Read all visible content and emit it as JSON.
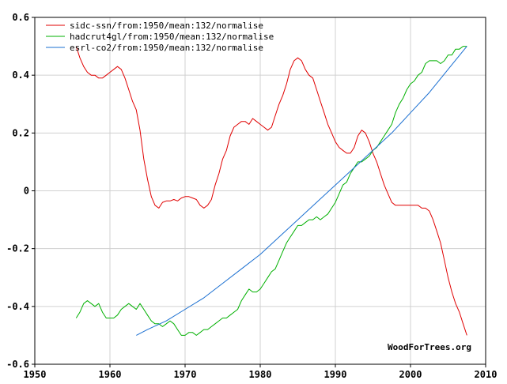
{
  "chart_data": {
    "type": "line",
    "xlim": [
      1950,
      2010
    ],
    "ylim": [
      -0.6,
      0.6
    ],
    "x_ticks": [
      1950,
      1960,
      1970,
      1980,
      1990,
      2000,
      2010
    ],
    "y_ticks": [
      0.6,
      0.4,
      0.2,
      0,
      -0.2,
      -0.4,
      -0.6
    ],
    "x_tick_labels": [
      "1950",
      "1960",
      "1970",
      "1980",
      "1990",
      "2000",
      "2010"
    ],
    "y_tick_labels": [
      "0.6",
      "0.4",
      "0.2",
      "0",
      "-0.2",
      "-0.4",
      "-0.6"
    ],
    "grid": true,
    "legend_position": "top-left",
    "credit": "WoodForTrees.org",
    "series": [
      {
        "name": "sidc-ssn/from:1950/mean:132/normalise",
        "color": "#e00000",
        "x": [
          1955.5,
          1956.0,
          1956.5,
          1957.0,
          1957.5,
          1958.0,
          1958.5,
          1959.0,
          1959.5,
          1960.0,
          1960.5,
          1961.0,
          1961.5,
          1962.0,
          1962.5,
          1963.0,
          1963.5,
          1964.0,
          1964.5,
          1965.0,
          1965.5,
          1966.0,
          1966.5,
          1967.0,
          1967.5,
          1968.0,
          1968.5,
          1969.0,
          1969.5,
          1970.0,
          1970.5,
          1971.0,
          1971.5,
          1972.0,
          1972.5,
          1973.0,
          1973.5,
          1974.0,
          1974.5,
          1975.0,
          1975.5,
          1976.0,
          1976.5,
          1977.0,
          1977.5,
          1978.0,
          1978.5,
          1979.0,
          1979.5,
          1980.0,
          1980.5,
          1981.0,
          1981.5,
          1982.0,
          1982.5,
          1983.0,
          1983.5,
          1984.0,
          1984.5,
          1985.0,
          1985.5,
          1986.0,
          1986.5,
          1987.0,
          1987.5,
          1988.0,
          1988.5,
          1989.0,
          1989.5,
          1990.0,
          1990.5,
          1991.0,
          1991.5,
          1992.0,
          1992.5,
          1993.0,
          1993.5,
          1994.0,
          1994.5,
          1995.0,
          1995.5,
          1996.0,
          1996.5,
          1997.0,
          1997.5,
          1998.0,
          1998.5,
          1999.0,
          1999.5,
          2000.0,
          2000.5,
          2001.0,
          2001.5,
          2002.0,
          2002.5,
          2003.0,
          2003.5,
          2004.0,
          2004.5,
          2005.0,
          2005.5,
          2006.0,
          2006.5,
          2007.0,
          2007.5
        ],
        "values": [
          0.5,
          0.46,
          0.43,
          0.41,
          0.4,
          0.4,
          0.39,
          0.39,
          0.4,
          0.41,
          0.42,
          0.43,
          0.42,
          0.39,
          0.35,
          0.31,
          0.28,
          0.21,
          0.11,
          0.04,
          -0.02,
          -0.05,
          -0.06,
          -0.04,
          -0.035,
          -0.035,
          -0.03,
          -0.035,
          -0.025,
          -0.02,
          -0.02,
          -0.025,
          -0.03,
          -0.05,
          -0.06,
          -0.05,
          -0.03,
          0.02,
          0.06,
          0.11,
          0.14,
          0.19,
          0.22,
          0.23,
          0.24,
          0.24,
          0.23,
          0.25,
          0.24,
          0.23,
          0.22,
          0.21,
          0.22,
          0.26,
          0.3,
          0.33,
          0.37,
          0.42,
          0.45,
          0.46,
          0.45,
          0.42,
          0.4,
          0.39,
          0.35,
          0.31,
          0.27,
          0.23,
          0.2,
          0.17,
          0.15,
          0.14,
          0.13,
          0.13,
          0.15,
          0.19,
          0.21,
          0.2,
          0.17,
          0.13,
          0.1,
          0.06,
          0.02,
          -0.01,
          -0.04,
          -0.05,
          -0.05,
          -0.05,
          -0.05,
          -0.05,
          -0.05,
          -0.05,
          -0.06,
          -0.06,
          -0.07,
          -0.1,
          -0.14,
          -0.18,
          -0.24,
          -0.3,
          -0.35,
          -0.39,
          -0.42,
          -0.46,
          -0.5
        ]
      },
      {
        "name": "hadcrut4gl/from:1950/mean:132/normalise",
        "color": "#00b000",
        "x": [
          1955.5,
          1956.0,
          1956.5,
          1957.0,
          1957.5,
          1958.0,
          1958.5,
          1959.0,
          1959.5,
          1960.0,
          1960.5,
          1961.0,
          1961.5,
          1962.0,
          1962.5,
          1963.0,
          1963.5,
          1964.0,
          1964.5,
          1965.0,
          1965.5,
          1966.0,
          1966.5,
          1967.0,
          1967.5,
          1968.0,
          1968.5,
          1969.0,
          1969.5,
          1970.0,
          1970.5,
          1971.0,
          1971.5,
          1972.0,
          1972.5,
          1973.0,
          1973.5,
          1974.0,
          1974.5,
          1975.0,
          1975.5,
          1976.0,
          1976.5,
          1977.0,
          1977.5,
          1978.0,
          1978.5,
          1979.0,
          1979.5,
          1980.0,
          1980.5,
          1981.0,
          1981.5,
          1982.0,
          1982.5,
          1983.0,
          1983.5,
          1984.0,
          1984.5,
          1985.0,
          1985.5,
          1986.0,
          1986.5,
          1987.0,
          1987.5,
          1988.0,
          1988.5,
          1989.0,
          1989.5,
          1990.0,
          1990.5,
          1991.0,
          1991.5,
          1992.0,
          1992.5,
          1993.0,
          1993.5,
          1994.0,
          1994.5,
          1995.0,
          1995.5,
          1996.0,
          1996.5,
          1997.0,
          1997.5,
          1998.0,
          1998.5,
          1999.0,
          1999.5,
          2000.0,
          2000.5,
          2001.0,
          2001.5,
          2002.0,
          2002.5,
          2003.0,
          2003.5,
          2004.0,
          2004.5,
          2005.0,
          2005.5,
          2006.0,
          2006.5,
          2007.0,
          2007.5
        ],
        "values": [
          -0.44,
          -0.42,
          -0.39,
          -0.38,
          -0.39,
          -0.4,
          -0.39,
          -0.42,
          -0.44,
          -0.44,
          -0.44,
          -0.43,
          -0.41,
          -0.4,
          -0.39,
          -0.4,
          -0.41,
          -0.39,
          -0.41,
          -0.43,
          -0.45,
          -0.46,
          -0.46,
          -0.47,
          -0.46,
          -0.45,
          -0.46,
          -0.48,
          -0.5,
          -0.5,
          -0.49,
          -0.49,
          -0.5,
          -0.49,
          -0.48,
          -0.48,
          -0.47,
          -0.46,
          -0.45,
          -0.44,
          -0.44,
          -0.43,
          -0.42,
          -0.41,
          -0.38,
          -0.36,
          -0.34,
          -0.35,
          -0.35,
          -0.34,
          -0.32,
          -0.3,
          -0.28,
          -0.27,
          -0.24,
          -0.21,
          -0.18,
          -0.16,
          -0.14,
          -0.12,
          -0.12,
          -0.11,
          -0.1,
          -0.1,
          -0.09,
          -0.1,
          -0.09,
          -0.08,
          -0.06,
          -0.04,
          -0.01,
          0.02,
          0.03,
          0.06,
          0.08,
          0.1,
          0.1,
          0.11,
          0.12,
          0.14,
          0.15,
          0.17,
          0.19,
          0.21,
          0.23,
          0.27,
          0.3,
          0.32,
          0.35,
          0.37,
          0.38,
          0.4,
          0.41,
          0.44,
          0.45,
          0.45,
          0.45,
          0.44,
          0.45,
          0.47,
          0.47,
          0.49,
          0.49,
          0.5,
          0.5
        ]
      },
      {
        "name": "esrl-co2/from:1950/mean:132/normalise",
        "color": "#1a6fd1",
        "x": [
          1963.5,
          1965.0,
          1967.5,
          1970.0,
          1972.5,
          1975.0,
          1977.5,
          1980.0,
          1982.5,
          1985.0,
          1987.5,
          1990.0,
          1992.5,
          1995.0,
          1997.5,
          2000.0,
          2002.5,
          2005.0,
          2007.5
        ],
        "values": [
          -0.5,
          -0.48,
          -0.45,
          -0.41,
          -0.37,
          -0.32,
          -0.27,
          -0.22,
          -0.16,
          -0.1,
          -0.04,
          0.02,
          0.08,
          0.14,
          0.2,
          0.27,
          0.34,
          0.42,
          0.5
        ]
      }
    ]
  }
}
